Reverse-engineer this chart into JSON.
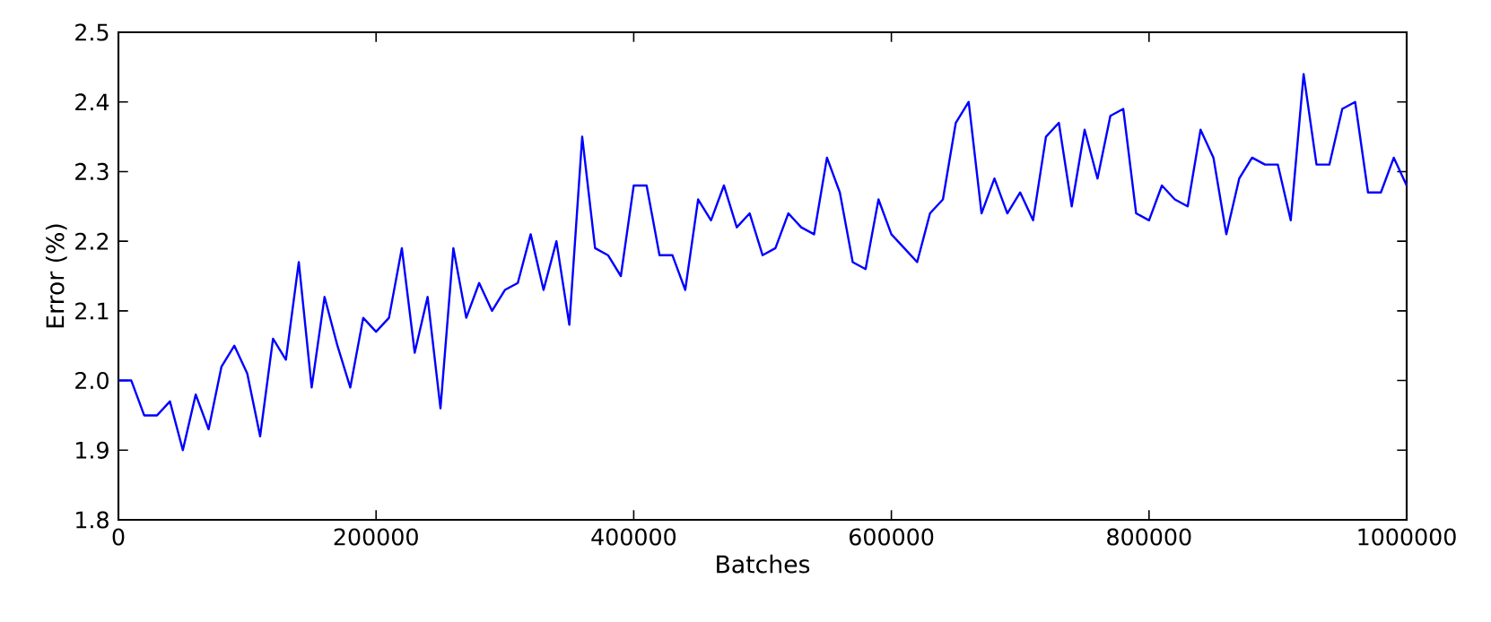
{
  "chart_data": {
    "type": "line",
    "xlabel": "Batches",
    "ylabel": "Error (%)",
    "x": [
      0,
      10000,
      20000,
      30000,
      40000,
      50000,
      60000,
      70000,
      80000,
      90000,
      100000,
      110000,
      120000,
      130000,
      140000,
      150000,
      160000,
      170000,
      180000,
      190000,
      200000,
      210000,
      220000,
      230000,
      240000,
      250000,
      260000,
      270000,
      280000,
      290000,
      300000,
      310000,
      320000,
      330000,
      340000,
      350000,
      360000,
      370000,
      380000,
      390000,
      400000,
      410000,
      420000,
      430000,
      440000,
      450000,
      460000,
      470000,
      480000,
      490000,
      500000,
      510000,
      520000,
      530000,
      540000,
      550000,
      560000,
      570000,
      580000,
      590000,
      600000,
      610000,
      620000,
      630000,
      640000,
      650000,
      660000,
      670000,
      680000,
      690000,
      700000,
      710000,
      720000,
      730000,
      740000,
      750000,
      760000,
      770000,
      780000,
      790000,
      800000,
      810000,
      820000,
      830000,
      840000,
      850000,
      860000,
      870000,
      880000,
      890000,
      900000,
      910000,
      920000,
      930000,
      940000,
      950000,
      960000,
      970000,
      980000,
      990000,
      1000000
    ],
    "series": [
      {
        "color": "#0000ff",
        "values": [
          2.0,
          2.0,
          1.95,
          1.95,
          1.97,
          1.9,
          1.98,
          1.93,
          2.02,
          2.05,
          2.01,
          1.92,
          2.06,
          2.03,
          2.17,
          1.99,
          2.12,
          2.05,
          1.99,
          2.09,
          2.07,
          2.09,
          2.19,
          2.04,
          2.12,
          1.96,
          2.19,
          2.09,
          2.14,
          2.1,
          2.13,
          2.14,
          2.21,
          2.13,
          2.2,
          2.08,
          2.35,
          2.19,
          2.18,
          2.15,
          2.28,
          2.28,
          2.18,
          2.18,
          2.13,
          2.26,
          2.23,
          2.28,
          2.22,
          2.24,
          2.18,
          2.19,
          2.24,
          2.22,
          2.21,
          2.32,
          2.27,
          2.17,
          2.16,
          2.26,
          2.21,
          2.19,
          2.17,
          2.24,
          2.26,
          2.37,
          2.4,
          2.24,
          2.29,
          2.24,
          2.27,
          2.23,
          2.35,
          2.37,
          2.25,
          2.36,
          2.29,
          2.38,
          2.39,
          2.24,
          2.23,
          2.28,
          2.26,
          2.25,
          2.36,
          2.32,
          2.21,
          2.29,
          2.32,
          2.31,
          2.31,
          2.23,
          2.44,
          2.31,
          2.31,
          2.39,
          2.4,
          2.27,
          2.27,
          2.32,
          2.28
        ]
      }
    ],
    "xlim": [
      0,
      1000000
    ],
    "ylim": [
      1.8,
      2.5
    ],
    "xticks": [
      0,
      200000,
      400000,
      600000,
      800000,
      1000000
    ],
    "yticks": [
      {
        "value": 1.8,
        "label": "1.8"
      },
      {
        "value": 1.9,
        "label": "1.9"
      },
      {
        "value": 2.0,
        "label": "2.0"
      },
      {
        "value": 2.1,
        "label": "2.1"
      },
      {
        "value": 2.2,
        "label": "2.2"
      },
      {
        "value": 2.3,
        "label": "2.3"
      },
      {
        "value": 2.4,
        "label": "2.4"
      },
      {
        "value": 2.5,
        "label": "2.5"
      }
    ],
    "grid": false,
    "marker": "none",
    "line_style": "solid"
  }
}
